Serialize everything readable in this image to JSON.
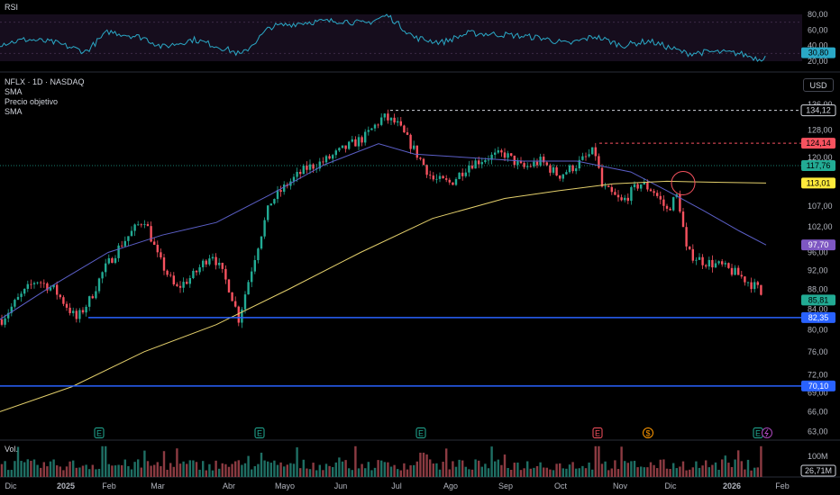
{
  "rsi_panel": {
    "label": "RSI",
    "ticks": [
      "80,00",
      "60,00",
      "40,00",
      "20,00"
    ],
    "current_value": "30,80"
  },
  "price_panel": {
    "symbol_line": "NFLX · 1D · NASDAQ",
    "legend_lines": [
      "SMA",
      "Precio objetivo",
      "SMA"
    ],
    "currency_button": "USD",
    "ticks": [
      "136,00",
      "128,00",
      "120,00",
      "113,00",
      "107,00",
      "102,00",
      "96,00",
      "92,00",
      "88,00",
      "84,00",
      "80,00",
      "76,00",
      "72,00",
      "69,00",
      "66,00",
      "63,00"
    ],
    "badges": [
      {
        "text": "134,12",
        "color": "#000000",
        "text_color": "#d1d4dc",
        "border": "#d1d4dc"
      },
      {
        "text": "124,14",
        "color": "#f7525f",
        "text_color": "#000000"
      },
      {
        "text": "117,76",
        "color": "#22ab94",
        "text_color": "#000000"
      },
      {
        "text": "113,01",
        "color": "#ffeb3b",
        "text_color": "#000000"
      },
      {
        "text": "97,70",
        "color": "#7e57c2",
        "text_color": "#ffffff"
      },
      {
        "text": "85,81",
        "color": "#22ab94",
        "text_color": "#000000"
      },
      {
        "text": "82,35",
        "color": "#2962ff",
        "text_color": "#ffffff"
      },
      {
        "text": "70,10",
        "color": "#2962ff",
        "text_color": "#ffffff"
      }
    ],
    "event_markers": [
      {
        "text": "E",
        "color": "#22ab94"
      },
      {
        "text": "E",
        "color": "#22ab94"
      },
      {
        "text": "E",
        "color": "#22ab94"
      },
      {
        "text": "E",
        "color": "#f7525f"
      },
      {
        "text": "$",
        "color": "#ff9800"
      },
      {
        "text": "E",
        "color": "#22ab94"
      }
    ]
  },
  "volume_panel": {
    "label": "Vol.",
    "tick": "100M",
    "current_value": "26,71M"
  },
  "time_axis": [
    "Dic",
    "2025",
    "Feb",
    "Mar",
    "Abr",
    "Mayo",
    "Jun",
    "Jul",
    "Ago",
    "Sep",
    "Oct",
    "Nov",
    "Dic",
    "2026",
    "Feb"
  ],
  "colors": {
    "up": "#22ab94",
    "down": "#f7525f",
    "rsi": "#2aa8c6",
    "sma_short": "#5b5fc7",
    "sma_long": "#e3cf6b",
    "support": "#2962ff"
  },
  "chart_data": {
    "type": "candlestick",
    "x_categories": [
      "Dic",
      "2025",
      "Feb",
      "Mar",
      "Abr",
      "Mayo",
      "Jun",
      "Jul",
      "Ago",
      "Sep",
      "Oct",
      "Nov",
      "Dic",
      "2026",
      "Feb"
    ],
    "close_path": [
      [
        "Dic",
        84.5
      ],
      [
        "2025",
        84.0
      ],
      [
        "Feb",
        96.0
      ],
      [
        "Mar",
        92.0
      ],
      [
        "Abr",
        88.0
      ],
      [
        "Mayo",
        113.0
      ],
      [
        "Jun",
        122.0
      ],
      [
        "Jul",
        130.0
      ],
      [
        "Ago",
        118.0
      ],
      [
        "Sep",
        121.0
      ],
      [
        "Oct",
        117.0
      ],
      [
        "Nov",
        110.0
      ],
      [
        "Dic",
        104.0
      ],
      [
        "2026",
        91.0
      ],
      [
        "Feb",
        85.8
      ]
    ],
    "y_range": [
      63,
      138
    ],
    "y_scale": "log",
    "horizontal_levels": {
      "high": 134.12,
      "target": 124.14,
      "last_ref": 117.76,
      "sma_long": 113.01,
      "sma_short": 97.7,
      "last": 85.81,
      "support_1": 82.35,
      "support_2": 70.1
    },
    "rsi_range": [
      20,
      80
    ],
    "rsi_last": 30.8,
    "volume_last": "26,71M",
    "grid": false,
    "legend": "top-left"
  }
}
